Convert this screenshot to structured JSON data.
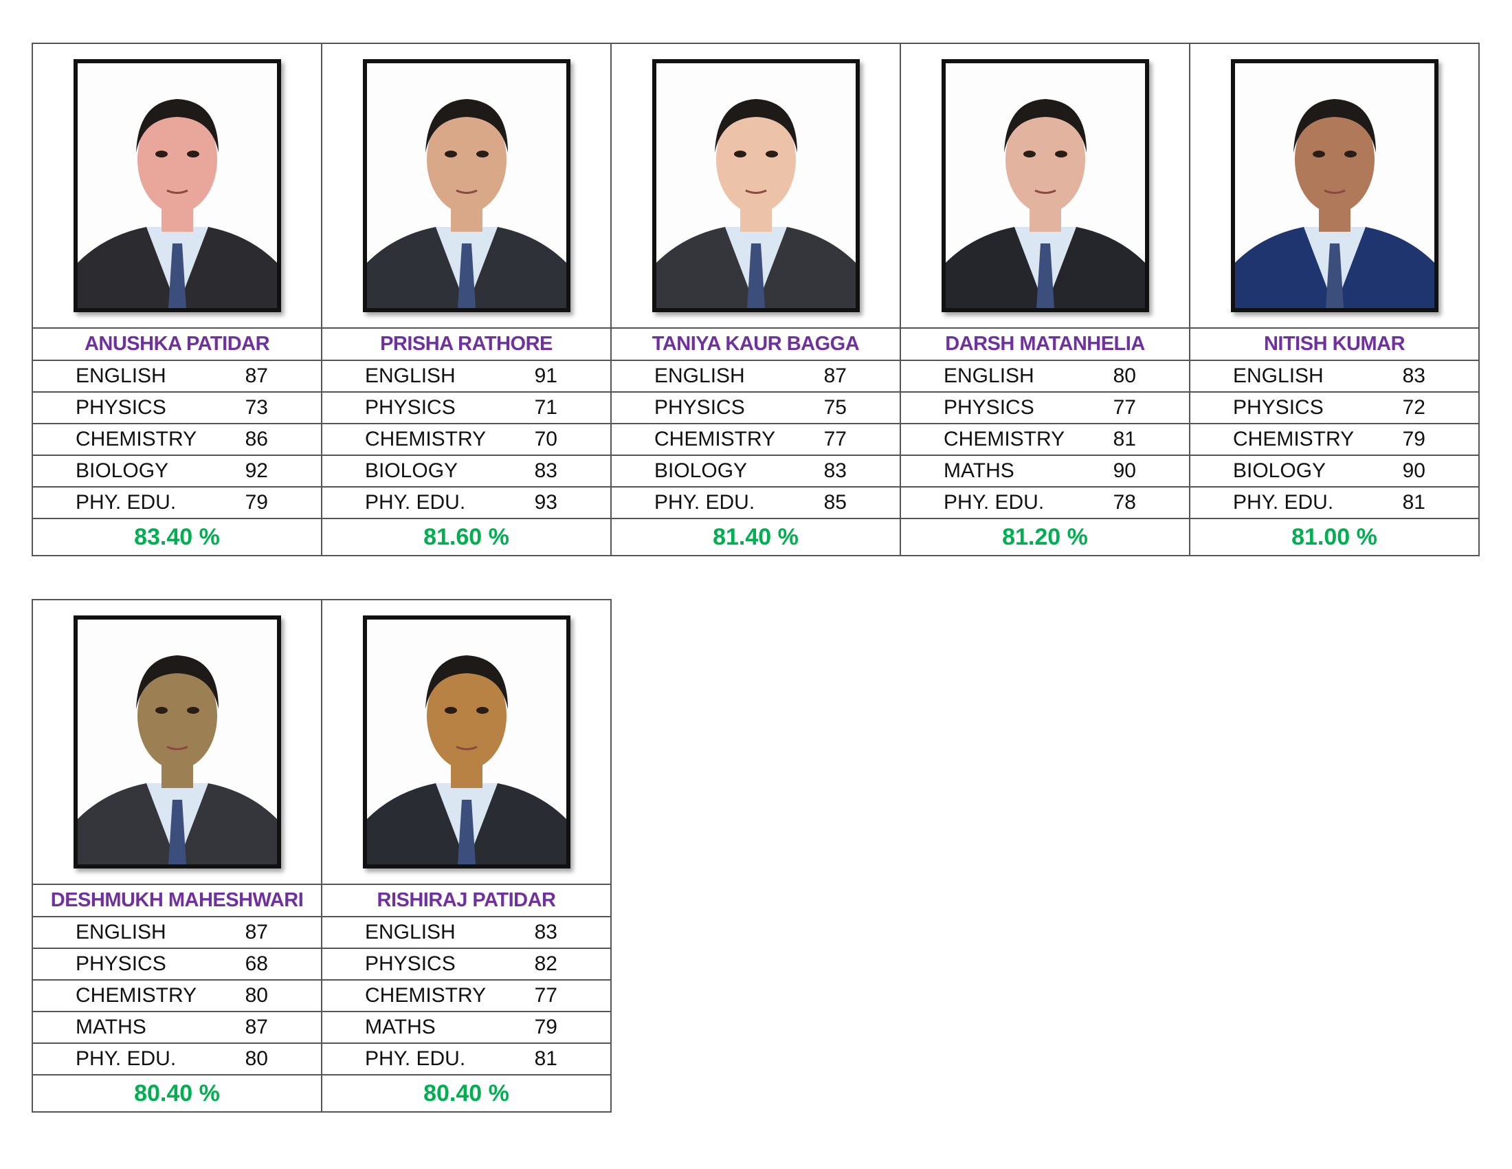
{
  "colors": {
    "name": "#7030A0",
    "percentage": "#00B050"
  },
  "students": [
    {
      "name": "ANUSHKA PATIDAR",
      "photo": "student-photo",
      "subjects": [
        {
          "label": "ENGLISH",
          "score": "87"
        },
        {
          "label": "PHYSICS",
          "score": "73"
        },
        {
          "label": "CHEMISTRY",
          "score": "86"
        },
        {
          "label": "BIOLOGY",
          "score": "92"
        },
        {
          "label": "PHY. EDU.",
          "score": "79"
        }
      ],
      "percentage": "83.40 %"
    },
    {
      "name": "PRISHA RATHORE",
      "photo": "student-photo",
      "subjects": [
        {
          "label": "ENGLISH",
          "score": "91"
        },
        {
          "label": "PHYSICS",
          "score": "71"
        },
        {
          "label": "CHEMISTRY",
          "score": "70"
        },
        {
          "label": "BIOLOGY",
          "score": "83"
        },
        {
          "label": "PHY. EDU.",
          "score": "93"
        }
      ],
      "percentage": "81.60 %"
    },
    {
      "name": "TANIYA KAUR BAGGA",
      "photo": "student-photo",
      "subjects": [
        {
          "label": "ENGLISH",
          "score": "87"
        },
        {
          "label": "PHYSICS",
          "score": "75"
        },
        {
          "label": "CHEMISTRY",
          "score": "77"
        },
        {
          "label": "BIOLOGY",
          "score": "83"
        },
        {
          "label": "PHY. EDU.",
          "score": "85"
        }
      ],
      "percentage": "81.40 %"
    },
    {
      "name": "DARSH MATANHELIA",
      "photo": "student-photo",
      "subjects": [
        {
          "label": "ENGLISH",
          "score": "80"
        },
        {
          "label": "PHYSICS",
          "score": "77"
        },
        {
          "label": "CHEMISTRY",
          "score": "81"
        },
        {
          "label": "MATHS",
          "score": "90"
        },
        {
          "label": "PHY. EDU.",
          "score": "78"
        }
      ],
      "percentage": "81.20 %"
    },
    {
      "name": "NITISH KUMAR",
      "photo": "student-photo",
      "subjects": [
        {
          "label": "ENGLISH",
          "score": "83"
        },
        {
          "label": "PHYSICS",
          "score": "72"
        },
        {
          "label": "CHEMISTRY",
          "score": "79"
        },
        {
          "label": "BIOLOGY",
          "score": "90"
        },
        {
          "label": "PHY. EDU.",
          "score": "81"
        }
      ],
      "percentage": "81.00 %"
    },
    {
      "name": "DESHMUKH MAHESHWARI",
      "photo": "student-photo",
      "subjects": [
        {
          "label": "ENGLISH",
          "score": "87"
        },
        {
          "label": "PHYSICS",
          "score": "68"
        },
        {
          "label": "CHEMISTRY",
          "score": "80"
        },
        {
          "label": "MATHS",
          "score": "87"
        },
        {
          "label": "PHY. EDU.",
          "score": "80"
        }
      ],
      "percentage": "80.40 %"
    },
    {
      "name": "RISHIRAJ PATIDAR",
      "photo": "student-photo",
      "subjects": [
        {
          "label": "ENGLISH",
          "score": "83"
        },
        {
          "label": "PHYSICS",
          "score": "82"
        },
        {
          "label": "CHEMISTRY",
          "score": "77"
        },
        {
          "label": "MATHS",
          "score": "79"
        },
        {
          "label": "PHY. EDU.",
          "score": "81"
        }
      ],
      "percentage": "80.40 %"
    }
  ]
}
